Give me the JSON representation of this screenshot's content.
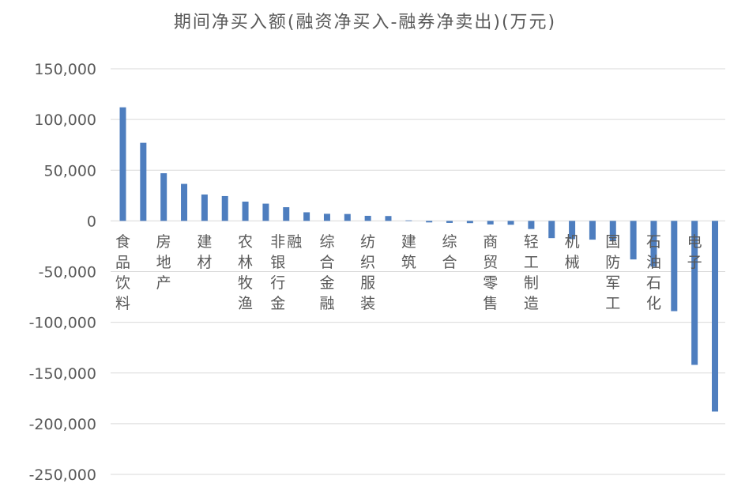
{
  "chart_data": {
    "type": "bar",
    "title": "期间净买入额(融资净买入-融券净卖出)(万元)",
    "xlabel": "",
    "ylabel": "",
    "ylim": [
      -250000,
      150000
    ],
    "yticks": [
      150000,
      100000,
      50000,
      0,
      -50000,
      -100000,
      -150000,
      -200000,
      -250000
    ],
    "ytick_labels": [
      "150,000",
      "100,000",
      "50,000",
      "0",
      "-50,000",
      "-100,000",
      "-150,000",
      "-200,000",
      "-250,000"
    ],
    "grid": true,
    "legend": "none",
    "bar_color": "#4e7ebf",
    "categories": [
      "食品饮料",
      "",
      "房地产",
      "",
      "建材",
      "",
      "农林牧渔",
      "",
      "非银行金融",
      "",
      "综合金融",
      "",
      "纺织服装",
      "",
      "建筑",
      "",
      "综合",
      "",
      "商贸零售",
      "",
      "轻工制造",
      "",
      "机械",
      "",
      "国防军工",
      "",
      "石油石化",
      "",
      "电子",
      ""
    ],
    "values": [
      112000,
      77000,
      47000,
      36500,
      26000,
      24500,
      19000,
      17000,
      13500,
      8500,
      7000,
      6800,
      5000,
      4800,
      500,
      -1500,
      -2000,
      -2200,
      -3500,
      -3800,
      -8000,
      -17000,
      -18000,
      -18500,
      -20000,
      -38000,
      -45000,
      -89000,
      -142000,
      -188000
    ]
  }
}
